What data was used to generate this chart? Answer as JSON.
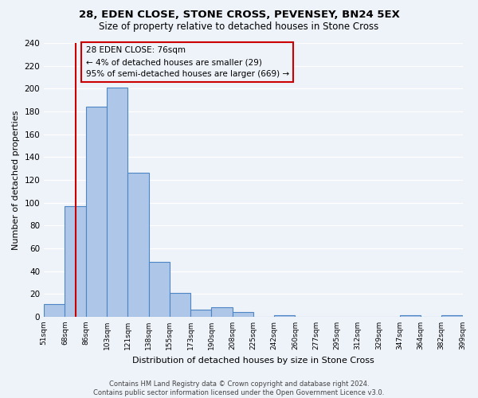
{
  "title": "28, EDEN CLOSE, STONE CROSS, PEVENSEY, BN24 5EX",
  "subtitle": "Size of property relative to detached houses in Stone Cross",
  "xlabel": "Distribution of detached houses by size in Stone Cross",
  "ylabel": "Number of detached properties",
  "bar_values": [
    11,
    97,
    184,
    201,
    126,
    48,
    21,
    6,
    8,
    4,
    0,
    1,
    0,
    0,
    0,
    0,
    0,
    1,
    0,
    1
  ],
  "bin_labels": [
    "51sqm",
    "68sqm",
    "86sqm",
    "103sqm",
    "121sqm",
    "138sqm",
    "155sqm",
    "173sqm",
    "190sqm",
    "208sqm",
    "225sqm",
    "242sqm",
    "260sqm",
    "277sqm",
    "295sqm",
    "312sqm",
    "329sqm",
    "347sqm",
    "364sqm",
    "382sqm",
    "399sqm"
  ],
  "bar_color": "#aec6e8",
  "bar_edge_color": "#4d86c4",
  "annotation_box_text": "28 EDEN CLOSE: 76sqm\n← 4% of detached houses are smaller (29)\n95% of semi-detached houses are larger (669) →",
  "annotation_box_edge_color": "#cc0000",
  "red_line_x": 1.5,
  "ylim": [
    0,
    240
  ],
  "yticks": [
    0,
    20,
    40,
    60,
    80,
    100,
    120,
    140,
    160,
    180,
    200,
    220,
    240
  ],
  "footnote": "Contains HM Land Registry data © Crown copyright and database right 2024.\nContains public sector information licensed under the Open Government Licence v3.0.",
  "bg_color": "#eef2f9"
}
